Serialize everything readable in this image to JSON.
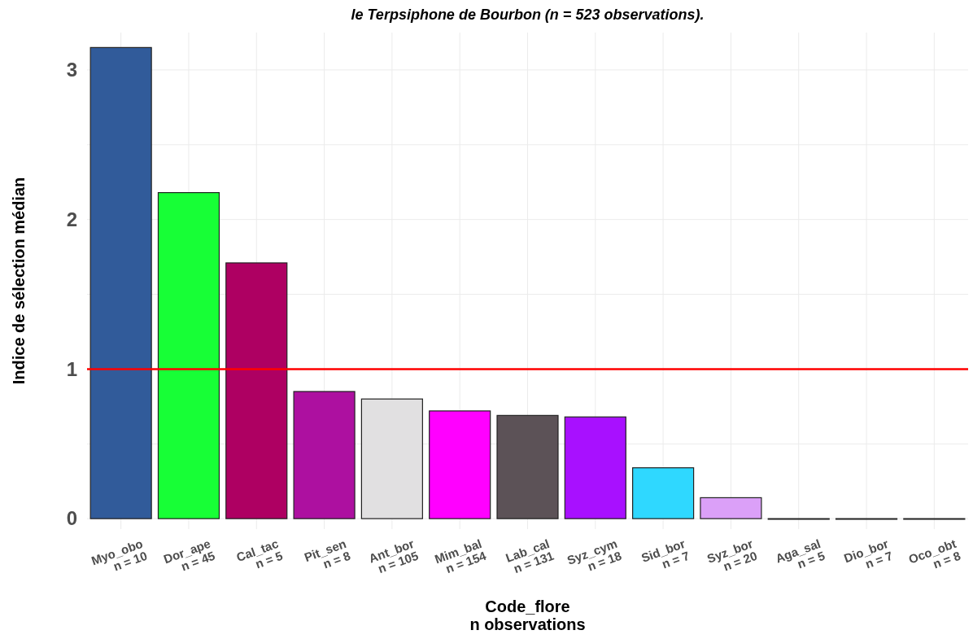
{
  "chart_data": {
    "type": "bar",
    "title": "le Terpsiphone de Bourbon (n = 523 observations).",
    "xlabel": "Code_flore\nn observations",
    "ylabel": "Indice de sélection médian",
    "categories": [
      "Myo_obo\nn = 10",
      "Dor_ape\nn = 45",
      "Cal_tac\nn = 5",
      "Pit_sen\nn = 8",
      "Ant_bor\nn = 105",
      "Mim_bal\nn = 154",
      "Lab_cal\nn = 131",
      "Syz_cym\nn = 18",
      "Sid_bor\nn = 7",
      "Syz_bor\nn = 20",
      "Aga_sal\nn = 5",
      "Dio_bor\nn = 7",
      "Oco_obt\nn = 8"
    ],
    "values": [
      3.15,
      2.18,
      1.71,
      0.85,
      0.8,
      0.72,
      0.69,
      0.68,
      0.34,
      0.14,
      0,
      0,
      0
    ],
    "colors": [
      "#315b9a",
      "#17ff36",
      "#ae0062",
      "#ad10a0",
      "#e1e0e1",
      "#ff00ff",
      "#5c5257",
      "#a810ff",
      "#2fd8ff",
      "#dba0f8",
      "#cccccc",
      "#cccccc",
      "#cccccc"
    ],
    "ylim": [
      -0.07,
      3.25
    ],
    "yticks": [
      0,
      {
        "value": 0.5,
        "label": null
      },
      1,
      {
        "value": 1.5,
        "label": null
      },
      2,
      {
        "value": 2.5,
        "label": null
      },
      3
    ],
    "grid": true,
    "ref_lines": [
      {
        "axis": "y",
        "value": 1,
        "color": "#ff0000"
      }
    ]
  }
}
